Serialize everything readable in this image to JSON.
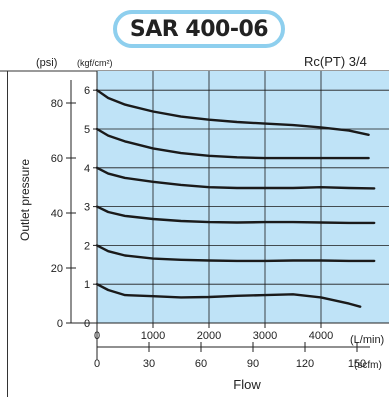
{
  "header": {
    "title": "SAR 400-06"
  },
  "chart_data": {
    "type": "line",
    "title": "SAR 400-06",
    "port_label": "Rc(PT) 3/4",
    "ylabel": "Outlet pressure",
    "xlabel": "Flow",
    "y_unit_primary": "(kgf/cm²)",
    "y_unit_secondary": "(psi)",
    "x_unit_primary": "(L/min)",
    "x_unit_secondary": "(scfm)",
    "xlim": [
      0,
      5000
    ],
    "ylim": [
      0,
      6.5
    ],
    "x_ticks": [
      0,
      1000,
      2000,
      3000,
      4000
    ],
    "x_tick_labels": [
      "0",
      "1000",
      "2000",
      "3000",
      "4000"
    ],
    "x2_ticks": [
      0,
      30,
      60,
      90,
      120,
      150
    ],
    "x2_tick_labels": [
      "0",
      "30",
      "60",
      "90",
      "120",
      "150"
    ],
    "y_ticks": [
      0,
      1,
      2,
      3,
      4,
      5,
      6
    ],
    "y_tick_labels": [
      "0",
      "1",
      "2",
      "3",
      "4",
      "5",
      "6"
    ],
    "y2_ticks": [
      0,
      20,
      40,
      60,
      80
    ],
    "y2_tick_labels": [
      "0",
      "20",
      "40",
      "60",
      "80"
    ],
    "grid": true,
    "plot_background": "#bfe3f7",
    "line_color": "#1a1a1a",
    "series": [
      {
        "x": [
          0,
          200,
          500,
          1000,
          1500,
          2000,
          2500,
          3000,
          3500,
          4000,
          4500,
          4850
        ],
        "y": [
          6.0,
          5.8,
          5.63,
          5.45,
          5.32,
          5.24,
          5.18,
          5.14,
          5.1,
          5.04,
          4.96,
          4.85
        ]
      },
      {
        "x": [
          0,
          200,
          500,
          1000,
          1500,
          2000,
          2500,
          3000,
          3500,
          4000,
          4500,
          4850
        ],
        "y": [
          5.0,
          4.83,
          4.68,
          4.5,
          4.38,
          4.31,
          4.27,
          4.25,
          4.25,
          4.25,
          4.25,
          4.25
        ]
      },
      {
        "x": [
          0,
          200,
          500,
          1000,
          1500,
          2000,
          2500,
          3000,
          3500,
          4000,
          4500,
          4950
        ],
        "y": [
          4.0,
          3.85,
          3.74,
          3.64,
          3.56,
          3.5,
          3.48,
          3.48,
          3.48,
          3.5,
          3.48,
          3.47
        ]
      },
      {
        "x": [
          0,
          200,
          500,
          1000,
          1500,
          2000,
          2500,
          3000,
          3500,
          4000,
          4500,
          4950
        ],
        "y": [
          3.0,
          2.86,
          2.76,
          2.68,
          2.63,
          2.6,
          2.59,
          2.6,
          2.6,
          2.59,
          2.58,
          2.58
        ]
      },
      {
        "x": [
          0,
          200,
          500,
          1000,
          1500,
          2000,
          2500,
          3000,
          3500,
          4000,
          4500,
          4950
        ],
        "y": [
          2.0,
          1.85,
          1.74,
          1.66,
          1.63,
          1.61,
          1.6,
          1.6,
          1.61,
          1.61,
          1.6,
          1.6
        ]
      },
      {
        "x": [
          0,
          200,
          500,
          1000,
          1500,
          2000,
          2500,
          3000,
          3500,
          4000,
          4500,
          4700
        ],
        "y": [
          1.0,
          0.85,
          0.72,
          0.69,
          0.66,
          0.67,
          0.7,
          0.72,
          0.74,
          0.66,
          0.5,
          0.42
        ]
      }
    ]
  }
}
